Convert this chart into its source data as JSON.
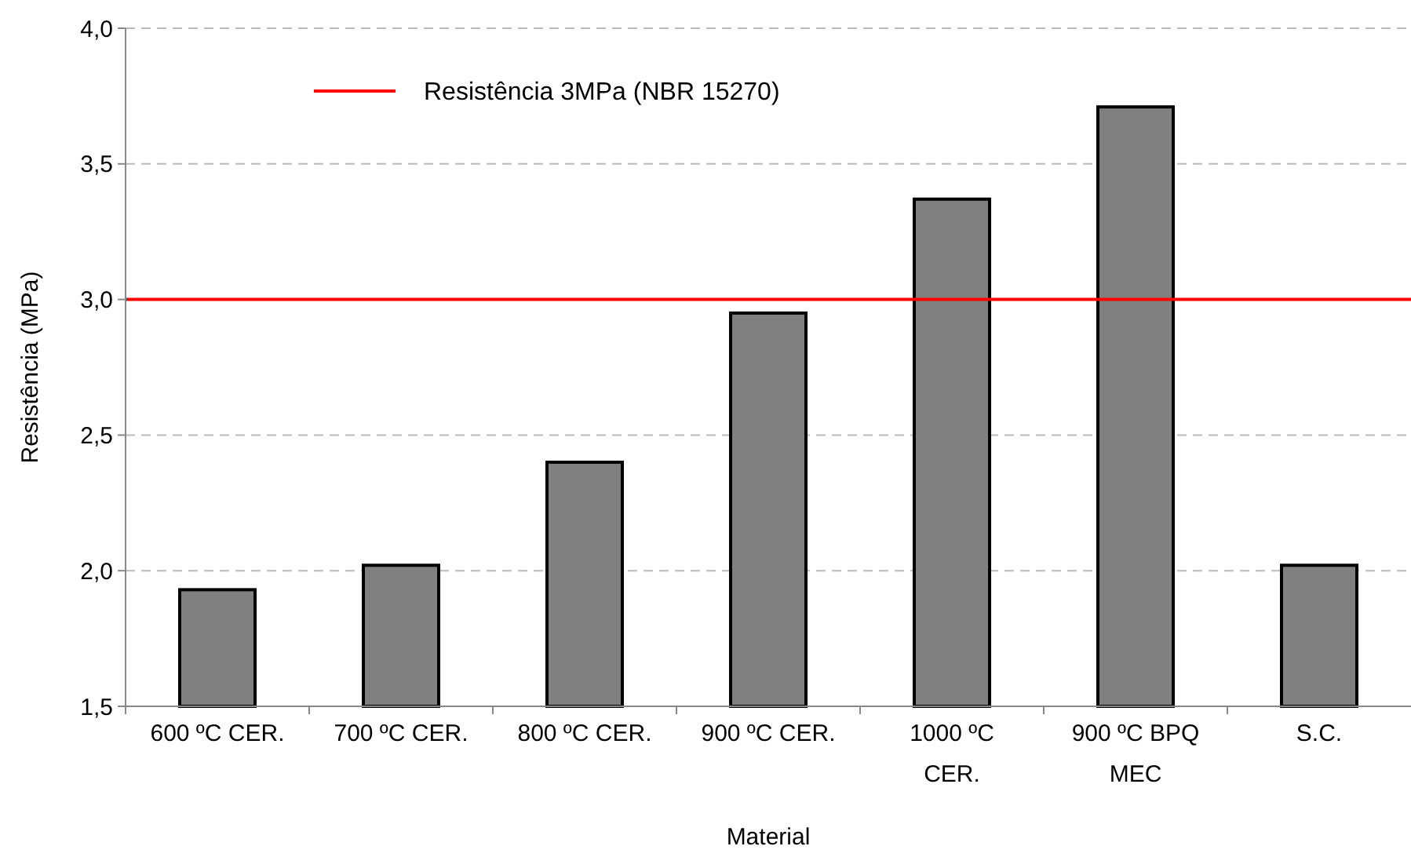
{
  "chart_data": {
    "type": "bar",
    "xlabel": "Material",
    "ylabel": "Resistência (MPa)",
    "categories": [
      "600 ºC CER.",
      "700 ºC CER.",
      "800 ºC CER.",
      "900 ºC CER.",
      "1000 ºC CER.",
      "900 ºC BPQ MEC",
      "S.C."
    ],
    "values": [
      1.93,
      2.02,
      2.4,
      2.95,
      3.37,
      3.71,
      2.02
    ],
    "color": "#808080",
    "ylim": [
      1.5,
      4.0
    ],
    "yticks": [
      {
        "value": 1.5,
        "label": "1,5"
      },
      {
        "value": 2.0,
        "label": "2,0"
      },
      {
        "value": 2.5,
        "label": "2,5"
      },
      {
        "value": 3.0,
        "label": "3,0"
      },
      {
        "value": 3.5,
        "label": "3,5"
      },
      {
        "value": 4.0,
        "label": "4,0"
      }
    ],
    "grid": "y",
    "ref_lines": [
      {
        "axis": "y",
        "value": 3.0,
        "label": "Resistência 3MPa (NBR 15270)",
        "color": "#ff0000",
        "line_style": "solid"
      }
    ]
  }
}
